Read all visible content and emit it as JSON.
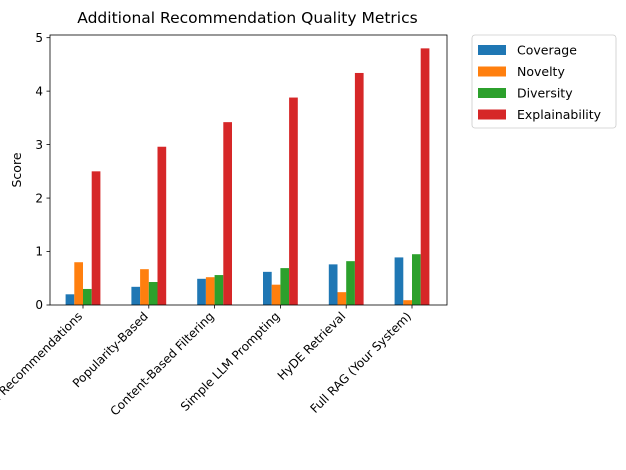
{
  "chart_data": {
    "type": "bar",
    "title": "Additional Recommendation Quality Metrics",
    "xlabel": "",
    "ylabel": "Score",
    "ylim": [
      0,
      5.05
    ],
    "yticks": [
      0,
      1,
      2,
      3,
      4,
      5
    ],
    "grid": false,
    "legend_position": "outside-right",
    "categories": [
      "Random Recommendations",
      "Popularity-Based",
      "Content-Based Filtering",
      "Simple LLM Prompting",
      "HyDE Retrieval",
      "Full RAG (Your System)"
    ],
    "series": [
      {
        "name": "Coverage",
        "color": "#1f77b4",
        "values": [
          0.2,
          0.34,
          0.49,
          0.62,
          0.76,
          0.89
        ]
      },
      {
        "name": "Novelty",
        "color": "#ff7f0e",
        "values": [
          0.8,
          0.67,
          0.52,
          0.38,
          0.24,
          0.09
        ]
      },
      {
        "name": "Diversity",
        "color": "#2ca02c",
        "values": [
          0.3,
          0.43,
          0.56,
          0.69,
          0.82,
          0.95
        ]
      },
      {
        "name": "Explainability",
        "color": "#d62728",
        "values": [
          2.5,
          2.96,
          3.42,
          3.88,
          4.34,
          4.8
        ]
      }
    ]
  }
}
